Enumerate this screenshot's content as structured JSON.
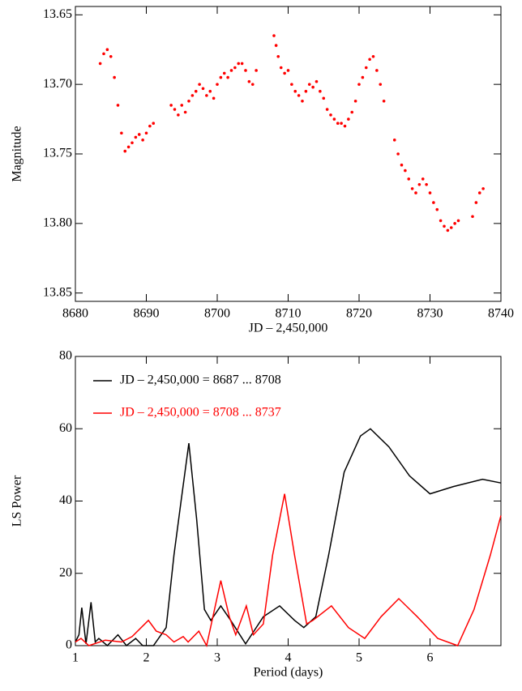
{
  "chart_data": [
    {
      "type": "scatter",
      "xlabel": "JD – 2,450,000",
      "ylabel": "Magnitude",
      "xlim": [
        8680,
        8740
      ],
      "xticks": [
        8680,
        8690,
        8700,
        8710,
        8720,
        8730,
        8740
      ],
      "ylim": [
        13.644,
        13.856
      ],
      "inverted_y": true,
      "yticks": [
        13.65,
        {
          "value": 13.7,
          "label": "13.70"
        },
        13.75,
        {
          "value": 13.8,
          "label": "13.80"
        },
        13.85
      ],
      "color": "#ff0000",
      "x": [
        8683.5,
        8684,
        8684.5,
        8685,
        8685.5,
        8686,
        8686.5,
        8687,
        8687.5,
        8688,
        8688.5,
        8689,
        8689.5,
        8690,
        8690.5,
        8691,
        8693.5,
        8694,
        8694.5,
        8695,
        8695.5,
        8696,
        8696.5,
        8697,
        8697.5,
        8698,
        8698.5,
        8699,
        8699.5,
        8700,
        8700.5,
        8701,
        8701.5,
        8702,
        8702.5,
        8703,
        8703.5,
        8704,
        8704.5,
        8705,
        8705.5,
        8708,
        8708.3,
        8708.6,
        8709,
        8709.5,
        8710,
        8710.5,
        8711,
        8711.5,
        8712,
        8712.5,
        8713,
        8713.5,
        8714,
        8714.5,
        8715,
        8715.5,
        8716,
        8716.5,
        8717,
        8717.5,
        8718,
        8718.5,
        8719,
        8719.5,
        8720,
        8720.5,
        8721,
        8721.5,
        8722,
        8722.5,
        8723,
        8723.5,
        8725,
        8725.5,
        8726,
        8726.5,
        8727,
        8727.5,
        8728,
        8728.5,
        8729,
        8729.5,
        8730,
        8730.5,
        8731,
        8731.5,
        8732,
        8732.5,
        8733,
        8733.5,
        8734,
        8736,
        8736.5,
        8737,
        8737.5
      ],
      "values": [
        13.685,
        13.678,
        13.675,
        13.68,
        13.695,
        13.715,
        13.735,
        13.748,
        13.745,
        13.742,
        13.738,
        13.736,
        13.74,
        13.735,
        13.73,
        13.728,
        13.715,
        13.718,
        13.722,
        13.715,
        13.72,
        13.712,
        13.708,
        13.705,
        13.7,
        13.703,
        13.708,
        13.705,
        13.71,
        13.7,
        13.695,
        13.692,
        13.695,
        13.69,
        13.688,
        13.685,
        13.685,
        13.69,
        13.698,
        13.7,
        13.69,
        13.665,
        13.672,
        13.68,
        13.688,
        13.692,
        13.69,
        13.7,
        13.705,
        13.708,
        13.712,
        13.705,
        13.7,
        13.702,
        13.698,
        13.705,
        13.71,
        13.718,
        13.722,
        13.725,
        13.728,
        13.728,
        13.73,
        13.725,
        13.72,
        13.712,
        13.7,
        13.695,
        13.688,
        13.682,
        13.68,
        13.69,
        13.7,
        13.712,
        13.74,
        13.75,
        13.758,
        13.762,
        13.768,
        13.775,
        13.778,
        13.772,
        13.768,
        13.772,
        13.778,
        13.785,
        13.79,
        13.798,
        13.802,
        13.805,
        13.803,
        13.8,
        13.798,
        13.795,
        13.785,
        13.778,
        13.775
      ]
    },
    {
      "type": "line",
      "xlabel": "Period (days)",
      "ylabel": "LS Power",
      "xlim": [
        1,
        7
      ],
      "xticks": [
        1,
        2,
        3,
        4,
        5,
        6
      ],
      "ylim": [
        0,
        80
      ],
      "yticks": [
        0,
        20,
        40,
        60,
        80
      ],
      "legend": "upper left",
      "series": [
        {
          "name": "JD – 2,450,000 = 8687 ... 8708",
          "color": "#000000",
          "x": [
            1,
            1.05,
            1.09,
            1.15,
            1.22,
            1.28,
            1.33,
            1.45,
            1.6,
            1.72,
            1.85,
            1.95,
            2.1,
            2.28,
            2.39,
            2.49,
            2.6,
            2.71,
            2.82,
            2.91,
            3.05,
            3.19,
            3.4,
            3.65,
            3.88,
            4.09,
            4.22,
            4.39,
            4.57,
            4.79,
            5.02,
            5.16,
            5.42,
            5.71,
            6,
            6.33,
            6.74,
            7
          ],
          "values": [
            1,
            3,
            10.5,
            0.5,
            12,
            1,
            2,
            0,
            3,
            0,
            2,
            0,
            0,
            5,
            25,
            40,
            56,
            35,
            10,
            7,
            11,
            7,
            0.5,
            8,
            11,
            7,
            5,
            8,
            25,
            48,
            58,
            60,
            55,
            47,
            42,
            44,
            46,
            45
          ]
        },
        {
          "name": "JD – 2,450,000 = 8708 ... 8737",
          "color": "#ff0000",
          "x": [
            1,
            1.08,
            1.19,
            1.42,
            1.65,
            1.8,
            2.03,
            2.14,
            2.28,
            2.39,
            2.52,
            2.59,
            2.74,
            2.85,
            3.05,
            3.17,
            3.26,
            3.41,
            3.51,
            3.65,
            3.78,
            3.95,
            4.09,
            4.26,
            4.35,
            4.61,
            4.85,
            5.08,
            5.31,
            5.56,
            5.82,
            6.11,
            6.39,
            6.62,
            6.85,
            7
          ],
          "values": [
            1,
            2,
            0,
            1.5,
            1,
            2.5,
            7,
            4,
            3,
            1,
            2.5,
            1,
            4,
            0,
            18,
            8,
            3,
            11,
            3,
            6,
            25,
            42,
            25,
            6,
            7,
            11,
            5,
            2,
            8,
            13,
            8,
            2,
            0,
            10,
            25,
            36
          ]
        }
      ]
    }
  ]
}
